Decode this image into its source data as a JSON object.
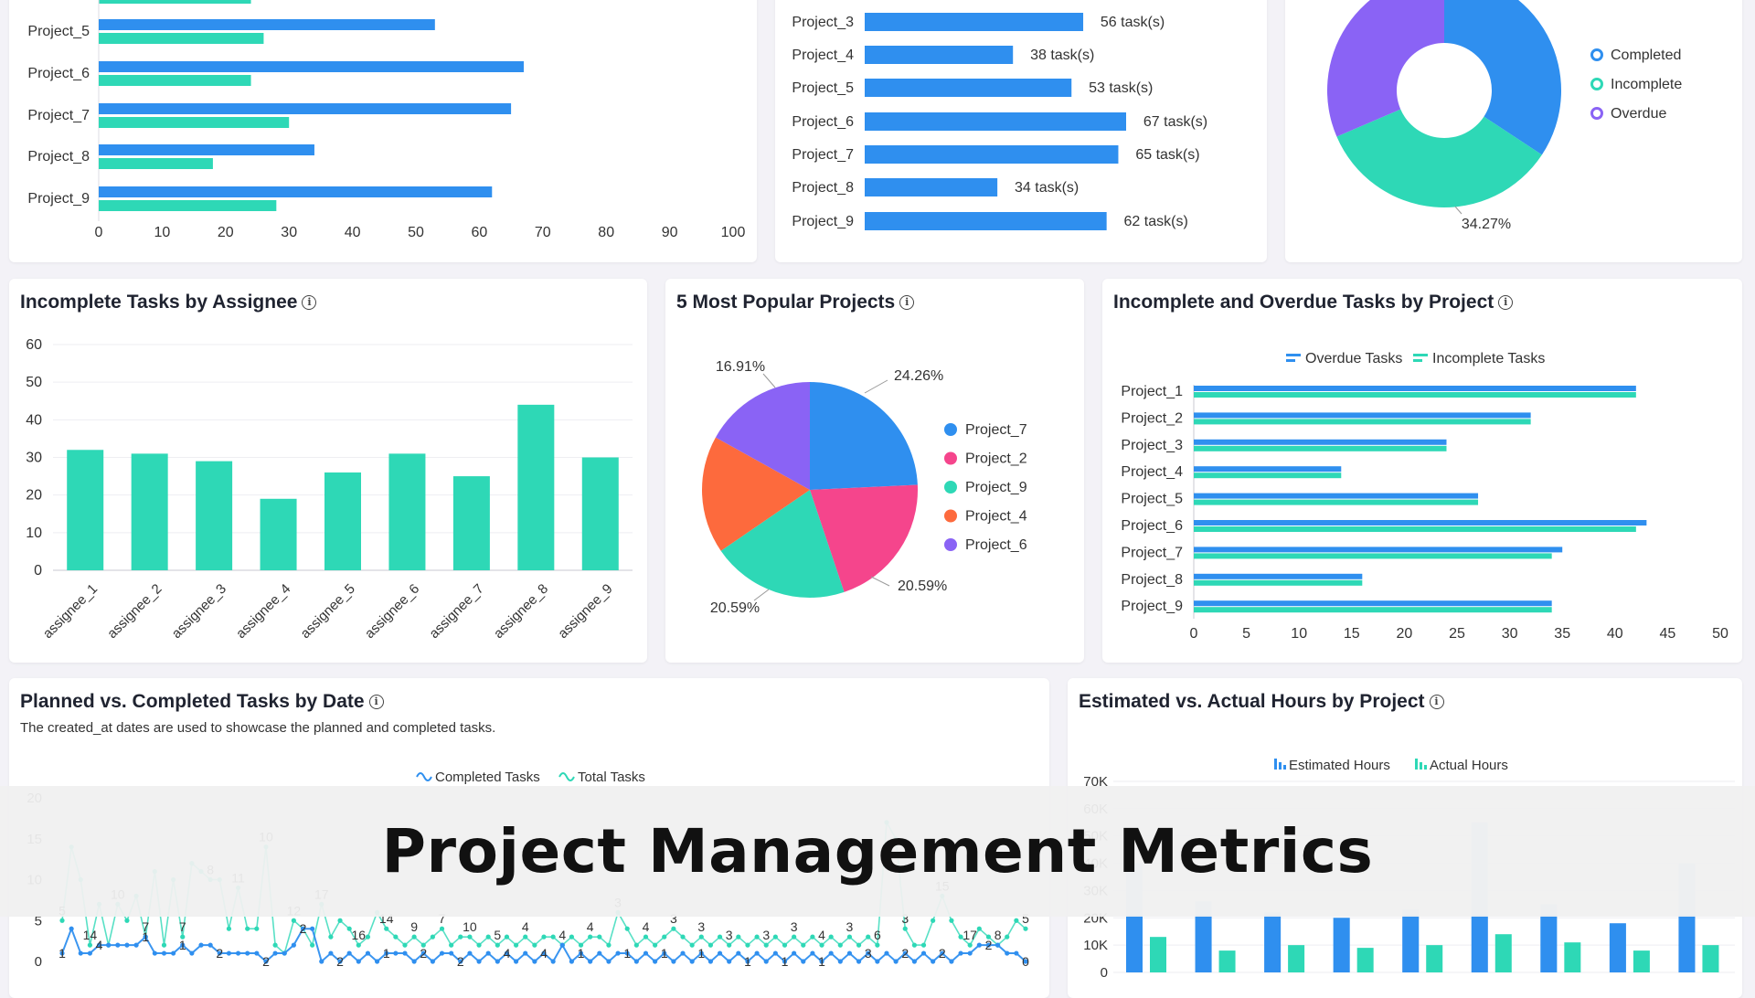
{
  "colors": {
    "blue": "#2f8fef",
    "teal": "#2ed8b6",
    "pink": "#f5458c",
    "orange": "#fd6a3d",
    "purple": "#8a63f5",
    "lightblue": "#b7d8f8",
    "lightteal": "#a6efdf"
  },
  "banner": {
    "title": "Project Management Metrics"
  },
  "cards": {
    "assignee": {
      "title": "Incomplete Tasks by Assignee"
    },
    "popular": {
      "title": "5 Most Popular Projects"
    },
    "overdue": {
      "title": "Incomplete and Overdue Tasks by Project"
    },
    "planned": {
      "title": "Planned vs. Completed Tasks by Date",
      "subtitle": "The created_at dates are used to showcase the planned and completed tasks."
    },
    "hours": {
      "title": "Estimated vs. Actual Hours by Project"
    }
  },
  "chart_data": [
    {
      "id": "top-left-bars",
      "type": "bar",
      "orientation": "horizontal",
      "categories": [
        "Project_5",
        "Project_6",
        "Project_7",
        "Project_8",
        "Project_9"
      ],
      "series": [
        {
          "values": [
            53,
            67,
            65,
            34,
            62
          ],
          "color": "#2f8fef"
        },
        {
          "values": [
            26,
            24,
            30,
            18,
            28
          ],
          "color": "#2ed8b6"
        }
      ],
      "partial_top_teal": 24,
      "xlim": [
        0,
        100
      ],
      "xticks": [
        "0",
        "10",
        "20",
        "30",
        "40",
        "50",
        "60",
        "70",
        "80",
        "90",
        "100"
      ]
    },
    {
      "id": "top-middle-bars",
      "type": "bar",
      "orientation": "horizontal",
      "categories": [
        "Project_3",
        "Project_4",
        "Project_5",
        "Project_6",
        "Project_7",
        "Project_8",
        "Project_9"
      ],
      "values": [
        56,
        38,
        53,
        67,
        65,
        34,
        62
      ],
      "labels": [
        "56 task(s)",
        "38 task(s)",
        "53 task(s)",
        "67 task(s)",
        "65 task(s)",
        "34 task(s)",
        "62 task(s)"
      ],
      "xmax": 100
    },
    {
      "id": "top-right-donut",
      "type": "pie",
      "hole": true,
      "slices": [
        {
          "name": "Completed",
          "value": 34.27,
          "color": "#2f8fef"
        },
        {
          "name": "Incomplete",
          "value": 34.27,
          "color": "#2ed8b6"
        },
        {
          "name": "Overdue",
          "value": 31.46,
          "color": "#8a63f5"
        }
      ],
      "visible_label": "34.27%"
    },
    {
      "id": "assignee-bars",
      "type": "bar",
      "categories": [
        "assignee_1",
        "assignee_2",
        "assignee_3",
        "assignee_4",
        "assignee_5",
        "assignee_6",
        "assignee_7",
        "assignee_8",
        "assignee_9"
      ],
      "values": [
        32,
        31,
        29,
        19,
        26,
        31,
        25,
        44,
        30
      ],
      "ylim": [
        0,
        60
      ],
      "yticks": [
        "0",
        "10",
        "20",
        "30",
        "40",
        "50",
        "60"
      ],
      "color": "#2ed8b6"
    },
    {
      "id": "popular-pie",
      "type": "pie",
      "slices": [
        {
          "name": "Project_7",
          "value": 24.26,
          "label": "24.26%",
          "color": "#2f8fef"
        },
        {
          "name": "Project_2",
          "value": 20.59,
          "label": "20.59%",
          "color": "#f5458c"
        },
        {
          "name": "Project_9",
          "value": 20.59,
          "label": "20.59%",
          "color": "#2ed8b6"
        },
        {
          "name": "Project_4",
          "value": 17.65,
          "label": "",
          "color": "#fd6a3d"
        },
        {
          "name": "Project_6",
          "value": 16.91,
          "label": "16.91%",
          "color": "#8a63f5"
        }
      ]
    },
    {
      "id": "overdue-bars",
      "type": "bar",
      "orientation": "horizontal",
      "categories": [
        "Project_1",
        "Project_2",
        "Project_3",
        "Project_4",
        "Project_5",
        "Project_6",
        "Project_7",
        "Project_8",
        "Project_9"
      ],
      "series": [
        {
          "name": "Overdue Tasks",
          "values": [
            42,
            32,
            24,
            14,
            27,
            43,
            35,
            16,
            34
          ],
          "color": "#2f8fef"
        },
        {
          "name": "Incomplete Tasks",
          "values": [
            42,
            32,
            24,
            14,
            27,
            42,
            34,
            16,
            34
          ],
          "color": "#2ed8b6"
        }
      ],
      "xlim": [
        0,
        50
      ],
      "xticks": [
        "0",
        "5",
        "10",
        "15",
        "20",
        "25",
        "30",
        "35",
        "40",
        "45",
        "50"
      ]
    },
    {
      "id": "planned-lines",
      "type": "line",
      "series": [
        {
          "name": "Completed Tasks",
          "values": [
            1,
            4,
            1,
            1,
            2,
            2,
            2,
            2,
            2,
            3,
            1,
            1,
            1,
            2,
            1,
            2,
            2,
            1,
            1,
            1,
            1,
            1,
            0,
            1,
            1,
            2,
            4,
            4,
            0,
            1,
            0,
            1,
            0,
            1,
            0,
            1,
            1,
            1,
            0,
            1,
            0,
            1,
            1,
            0,
            1,
            0,
            1,
            0,
            1,
            0,
            1,
            0,
            1,
            0,
            2,
            0,
            1,
            0,
            1,
            0,
            1,
            1,
            0,
            1,
            0,
            1,
            0,
            1,
            0,
            1,
            0,
            1,
            0,
            1,
            0,
            1,
            0,
            1,
            0,
            1,
            0,
            1,
            0,
            1,
            0,
            1,
            0,
            1,
            0,
            1,
            0,
            1,
            0,
            1,
            0,
            1,
            0,
            1,
            1,
            2,
            2,
            2,
            1,
            1,
            0
          ],
          "color": "#2f8fef"
        },
        {
          "name": "Total Tasks",
          "values": [
            5,
            14,
            10,
            2,
            7,
            2,
            7,
            5,
            8,
            3,
            11,
            2,
            10,
            3,
            12,
            11,
            10,
            10,
            4,
            9,
            4,
            4,
            14,
            2,
            1,
            5,
            4,
            2,
            7,
            3,
            5,
            4,
            2,
            3,
            6,
            4,
            3,
            2,
            3,
            2,
            3,
            4,
            2,
            3,
            3,
            2,
            3,
            2,
            3,
            2,
            3,
            2,
            3,
            3,
            2,
            3,
            2,
            3,
            3,
            2,
            6,
            4,
            2,
            3,
            2,
            3,
            4,
            3,
            2,
            3,
            2,
            3,
            2,
            3,
            2,
            3,
            2,
            3,
            2,
            3,
            2,
            3,
            2,
            3,
            2,
            3,
            2,
            3,
            2,
            17,
            15,
            4,
            2,
            2,
            5,
            8,
            5,
            3,
            2,
            4,
            3,
            2,
            3,
            5,
            4
          ],
          "color": "#2ed8b6"
        }
      ],
      "ylim": [
        0,
        20
      ],
      "yticks": [
        "0",
        "5",
        "10",
        "15",
        "20"
      ],
      "visible_point_labels_completed": [
        "1",
        "4",
        "1",
        "1",
        "2",
        "2",
        "2",
        "2",
        "1",
        "2",
        "2",
        "4",
        "4",
        "1",
        "1",
        "1",
        "1",
        "1",
        "1",
        "1",
        "3",
        "2",
        "2",
        "2",
        "0"
      ],
      "visible_point_labels_total": [
        "5",
        "14",
        "10",
        "7",
        "7",
        "8",
        "11",
        "10",
        "12",
        "17",
        "16",
        "14",
        "9",
        "7",
        "10",
        "5",
        "4",
        "4",
        "4",
        "3",
        "4",
        "3",
        "3",
        "3",
        "3",
        "3",
        "4",
        "3",
        "6",
        "3",
        "15",
        "17",
        "8",
        "5"
      ]
    },
    {
      "id": "hours-bars",
      "type": "bar",
      "series": [
        {
          "name": "Estimated Hours",
          "values": [
            40000,
            26000,
            22000,
            20000,
            23000,
            55000,
            25000,
            18000,
            40000
          ],
          "color": "#b7d8f8",
          "overlay": [
            21000,
            21000,
            21000,
            20000,
            21000,
            21000,
            21000,
            18000,
            21000
          ],
          "overlay_color": "#2f8fef"
        },
        {
          "name": "Actual Hours",
          "values": [
            13000,
            8000,
            10000,
            9000,
            10000,
            14000,
            11000,
            8000,
            10000
          ],
          "color": "#2ed8b6"
        }
      ],
      "ylim": [
        0,
        70000
      ],
      "yticks": [
        "0",
        "10K",
        "20K",
        "30K",
        "40K",
        "50K",
        "60K",
        "70K"
      ]
    }
  ]
}
